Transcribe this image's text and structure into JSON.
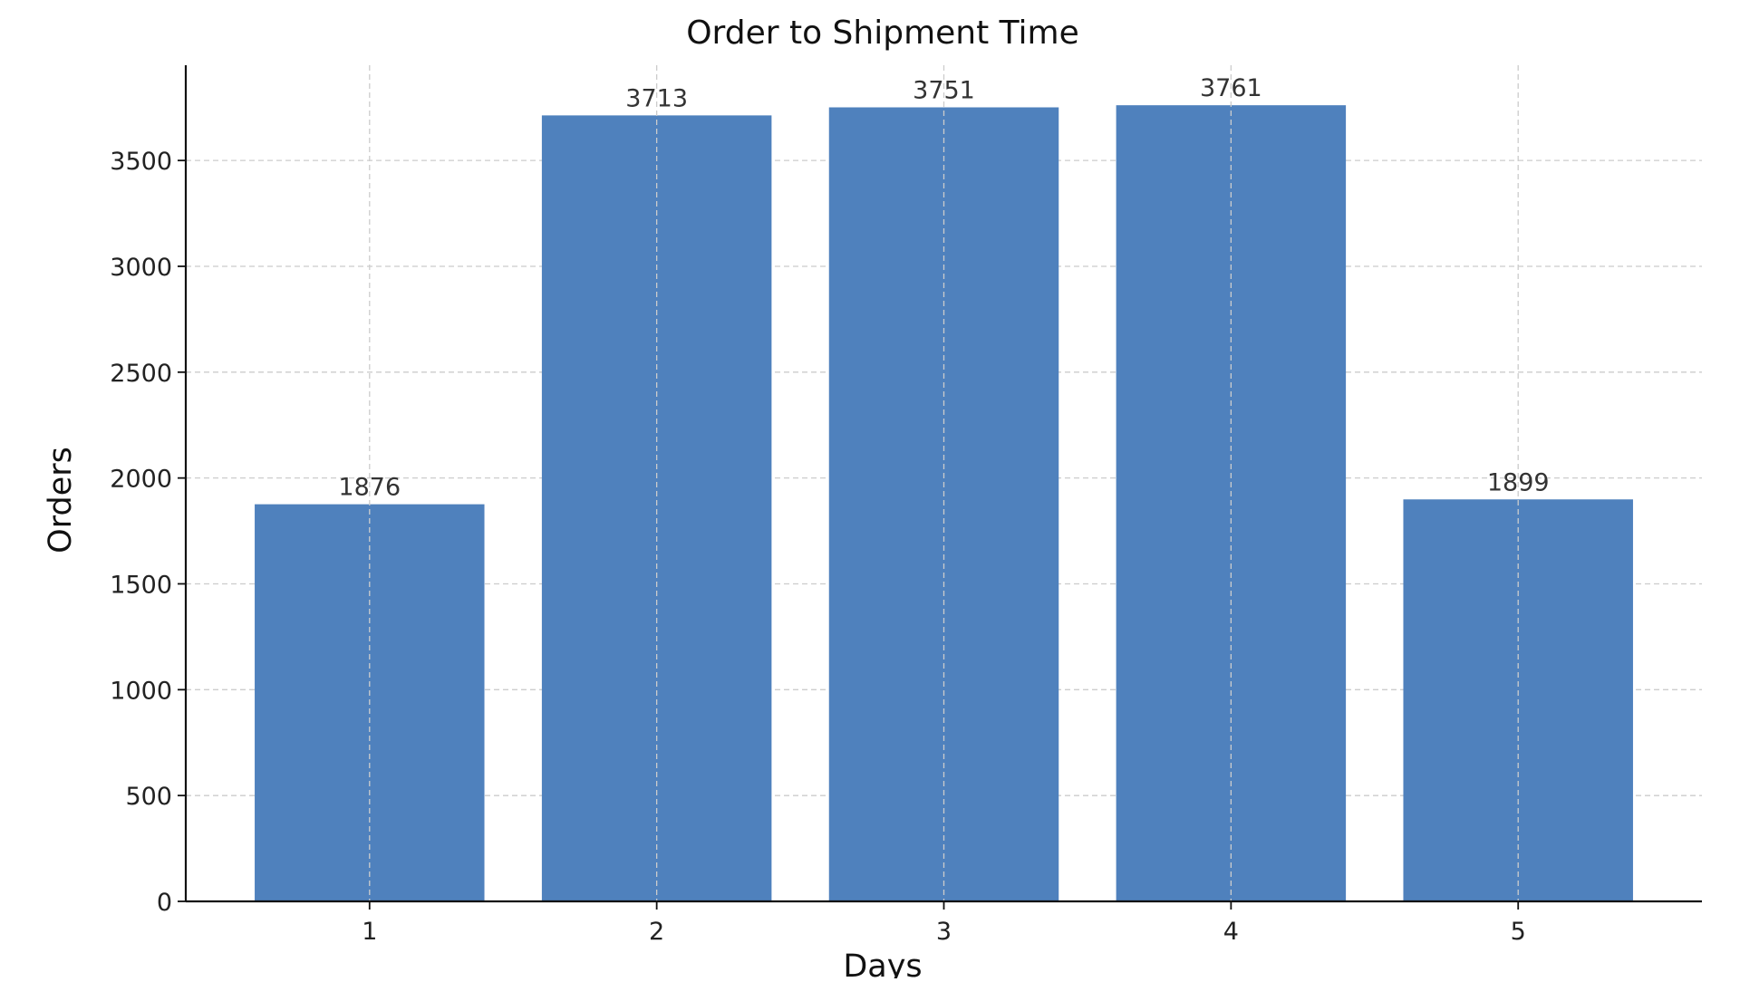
{
  "chart_data": {
    "type": "bar",
    "title": "Order to Shipment Time",
    "xlabel": "Days",
    "ylabel": "Orders",
    "categories": [
      "1",
      "2",
      "3",
      "4",
      "5"
    ],
    "values": [
      1876,
      3713,
      3751,
      3761,
      1899
    ],
    "data_labels": [
      "1876",
      "3713",
      "3751",
      "3761",
      "1899"
    ],
    "ylim": [
      0,
      3950
    ],
    "yticks": [
      0,
      500,
      1000,
      1500,
      2000,
      2500,
      3000,
      3500
    ],
    "ytick_labels": [
      "0",
      "500",
      "1000",
      "1500",
      "2000",
      "2500",
      "3000",
      "3500"
    ],
    "grid": true,
    "bar_color": "#4f81bd"
  }
}
